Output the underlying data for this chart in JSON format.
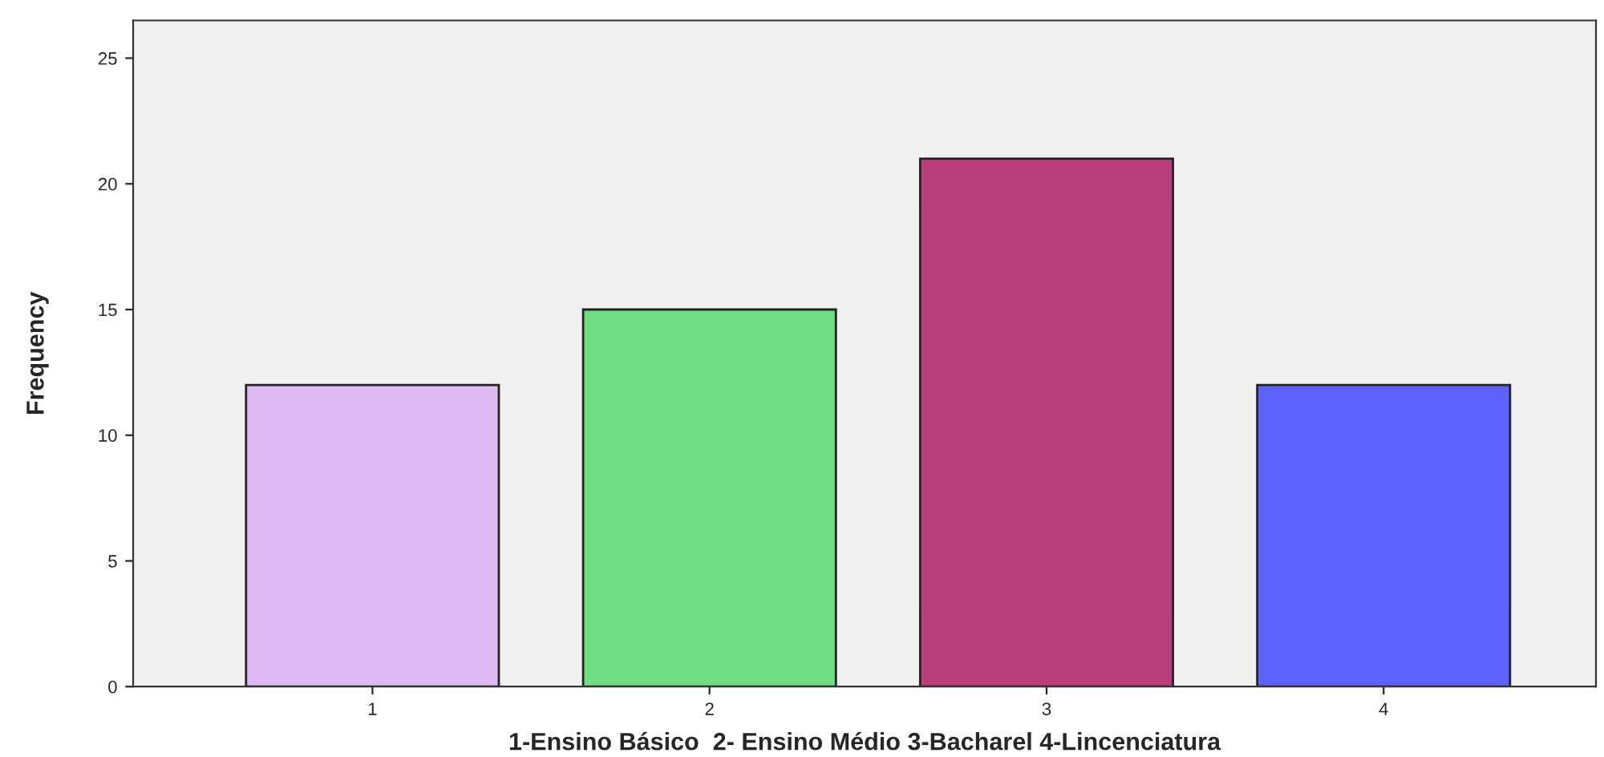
{
  "chart_data": {
    "type": "bar",
    "xlabel": "1-Ensino Básico  2- Ensino Médio 3-Bacharel 4-Lincenciatura",
    "ylabel": "Frequency",
    "categories": [
      "1",
      "2",
      "3",
      "4"
    ],
    "values": [
      12,
      15,
      21,
      12
    ],
    "colors": [
      "#dfb9f2",
      "#70dd84",
      "#ba3e7b",
      "#5e62fd"
    ],
    "ylim": [
      0,
      26.5
    ],
    "yticks": [
      0,
      5,
      10,
      15,
      20,
      25
    ],
    "grid": false,
    "legend": false
  }
}
